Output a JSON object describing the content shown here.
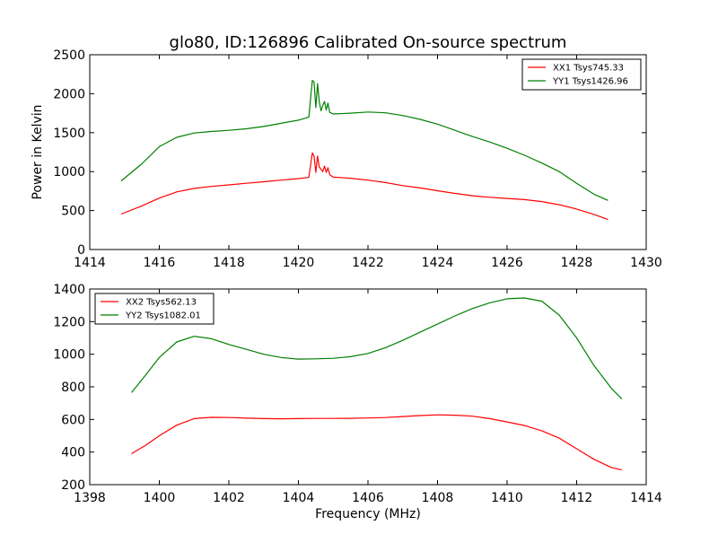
{
  "title": "glo80, ID:126896 Calibrated On-source spectrum",
  "colors": {
    "xx": "#ff0000",
    "yy": "#008000"
  },
  "chart_data": [
    {
      "type": "line",
      "ylabel": "Power in Kelvin",
      "xlabel": "",
      "xlim": [
        1414,
        1430
      ],
      "ylim": [
        0,
        2500
      ],
      "xticks": [
        1414,
        1416,
        1418,
        1420,
        1422,
        1424,
        1426,
        1428,
        1430
      ],
      "yticks": [
        0,
        500,
        1000,
        1500,
        2000,
        2500
      ],
      "legend_loc": "upper right",
      "series": [
        {
          "name": "XX1 Tsys745.33",
          "color": "#ff0000",
          "x": [
            1414.9,
            1415.5,
            1416.0,
            1416.5,
            1417.0,
            1417.5,
            1418.0,
            1418.5,
            1419.0,
            1419.5,
            1420.0,
            1420.3,
            1420.4,
            1420.45,
            1420.5,
            1420.55,
            1420.6,
            1420.7,
            1420.75,
            1420.8,
            1420.85,
            1420.9,
            1421.0,
            1421.5,
            1422.0,
            1422.5,
            1423.0,
            1423.5,
            1424.0,
            1424.5,
            1425.0,
            1425.5,
            1426.0,
            1426.5,
            1427.0,
            1427.5,
            1428.0,
            1428.5,
            1428.9
          ],
          "values": [
            455,
            560,
            660,
            740,
            785,
            810,
            830,
            850,
            870,
            890,
            910,
            925,
            1240,
            1200,
            990,
            1200,
            1060,
            1000,
            1070,
            990,
            1050,
            960,
            930,
            915,
            890,
            860,
            820,
            790,
            755,
            720,
            690,
            670,
            655,
            640,
            615,
            575,
            520,
            450,
            385
          ]
        },
        {
          "name": "YY1 Tsys1426.96",
          "color": "#008000",
          "x": [
            1414.9,
            1415.5,
            1416.0,
            1416.5,
            1417.0,
            1417.5,
            1418.0,
            1418.5,
            1419.0,
            1419.5,
            1420.0,
            1420.3,
            1420.4,
            1420.45,
            1420.5,
            1420.55,
            1420.6,
            1420.65,
            1420.7,
            1420.75,
            1420.8,
            1420.85,
            1420.9,
            1421.0,
            1421.5,
            1422.0,
            1422.5,
            1423.0,
            1423.5,
            1424.0,
            1424.5,
            1425.0,
            1425.5,
            1426.0,
            1426.5,
            1427.0,
            1427.5,
            1428.0,
            1428.5,
            1428.9
          ],
          "values": [
            880,
            1100,
            1320,
            1440,
            1495,
            1515,
            1530,
            1550,
            1580,
            1620,
            1660,
            1700,
            2170,
            2150,
            1820,
            2130,
            1900,
            1780,
            1850,
            1900,
            1790,
            1880,
            1760,
            1740,
            1750,
            1765,
            1755,
            1720,
            1670,
            1610,
            1530,
            1450,
            1380,
            1300,
            1210,
            1110,
            1000,
            850,
            710,
            630
          ]
        }
      ]
    },
    {
      "type": "line",
      "ylabel": "",
      "xlabel": "Frequency (MHz)",
      "xlim": [
        1398,
        1414
      ],
      "ylim": [
        200,
        1400
      ],
      "xticks": [
        1398,
        1400,
        1402,
        1404,
        1406,
        1408,
        1410,
        1412,
        1414
      ],
      "yticks": [
        200,
        400,
        600,
        800,
        1000,
        1200,
        1400
      ],
      "legend_loc": "upper left",
      "series": [
        {
          "name": "XX2 Tsys562.13",
          "color": "#ff0000",
          "x": [
            1399.2,
            1399.6,
            1400.0,
            1400.5,
            1401.0,
            1401.5,
            1402.0,
            1402.5,
            1403.0,
            1403.5,
            1404.0,
            1404.5,
            1405.0,
            1405.5,
            1406.0,
            1406.5,
            1407.0,
            1407.5,
            1408.0,
            1408.5,
            1409.0,
            1409.5,
            1410.0,
            1410.5,
            1411.0,
            1411.5,
            1412.0,
            1412.5,
            1413.0,
            1413.3
          ],
          "values": [
            390,
            440,
            500,
            565,
            605,
            613,
            612,
            608,
            605,
            604,
            605,
            606,
            606,
            607,
            609,
            612,
            618,
            624,
            628,
            626,
            620,
            605,
            585,
            563,
            530,
            485,
            420,
            355,
            305,
            290
          ]
        },
        {
          "name": "YY2 Tsys1082.01",
          "color": "#008000",
          "x": [
            1399.2,
            1399.6,
            1400.0,
            1400.5,
            1401.0,
            1401.5,
            1402.0,
            1402.5,
            1403.0,
            1403.5,
            1404.0,
            1404.5,
            1405.0,
            1405.5,
            1406.0,
            1406.5,
            1407.0,
            1407.5,
            1408.0,
            1408.5,
            1409.0,
            1409.5,
            1410.0,
            1410.5,
            1411.0,
            1411.5,
            1412.0,
            1412.5,
            1413.0,
            1413.3
          ],
          "values": [
            765,
            870,
            980,
            1075,
            1110,
            1095,
            1060,
            1030,
            1000,
            980,
            970,
            972,
            975,
            985,
            1005,
            1040,
            1085,
            1135,
            1185,
            1235,
            1280,
            1315,
            1340,
            1345,
            1325,
            1240,
            1100,
            930,
            790,
            725
          ]
        }
      ]
    }
  ]
}
